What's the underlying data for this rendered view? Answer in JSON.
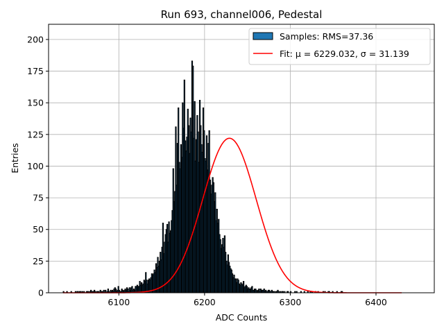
{
  "chart_data": {
    "type": "bar",
    "title": "Run 693, channel006, Pedestal",
    "xlabel": "ADC Counts",
    "ylabel": "Entries",
    "xlim": [
      6018,
      6468
    ],
    "ylim": [
      0,
      212
    ],
    "xticks": [
      6100,
      6200,
      6300,
      6400
    ],
    "yticks": [
      0,
      25,
      50,
      75,
      100,
      125,
      150,
      175,
      200
    ],
    "grid": true,
    "legend_placement": "top-right",
    "legend": [
      {
        "label": "Samples: RMS=37.36",
        "kind": "patch",
        "color": "#1f77b4"
      },
      {
        "label": "Fit: μ = 6229.032, σ = 31.139",
        "kind": "line",
        "color": "#ff0000"
      }
    ],
    "histogram": {
      "name": "Samples",
      "bin_start": 6035,
      "bin_width": 1,
      "face_color": "#1f77b4",
      "edge_color": "#000000",
      "counts": [
        1,
        0,
        0,
        0,
        1,
        0,
        0,
        0,
        0,
        1,
        0,
        0,
        0,
        0,
        1,
        0,
        1,
        1,
        0,
        1,
        1,
        0,
        1,
        0,
        1,
        0,
        0,
        1,
        1,
        1,
        0,
        1,
        2,
        1,
        1,
        1,
        2,
        1,
        0,
        1,
        1,
        1,
        0,
        2,
        1,
        1,
        1,
        2,
        0,
        2,
        0,
        1,
        3,
        1,
        0,
        2,
        1,
        2,
        1,
        3,
        4,
        3,
        1,
        2,
        5,
        2,
        1,
        1,
        3,
        2,
        1,
        2,
        3,
        2,
        4,
        3,
        1,
        4,
        2,
        4,
        5,
        2,
        3,
        2,
        5,
        5,
        6,
        5,
        5,
        9,
        6,
        8,
        6,
        7,
        10,
        9,
        16,
        10,
        7,
        10,
        11,
        10,
        12,
        15,
        14,
        15,
        18,
        16,
        23,
        20,
        28,
        21,
        25,
        32,
        26,
        36,
        55,
        31,
        40,
        46,
        50,
        54,
        40,
        56,
        47,
        49,
        57,
        65,
        98,
        72,
        80,
        131,
        85,
        118,
        146,
        103,
        98,
        117,
        107,
        150,
        130,
        168,
        120,
        112,
        123,
        145,
        132,
        110,
        138,
        127,
        183,
        179,
        122,
        151,
        104,
        121,
        140,
        127,
        103,
        152,
        132,
        117,
        111,
        146,
        128,
        106,
        104,
        124,
        97,
        118,
        128,
        89,
        78,
        85,
        91,
        87,
        72,
        79,
        57,
        66,
        55,
        58,
        46,
        42,
        35,
        38,
        43,
        36,
        45,
        32,
        25,
        22,
        30,
        24,
        21,
        19,
        18,
        15,
        12,
        14,
        11,
        11,
        8,
        11,
        10,
        7,
        6,
        8,
        7,
        6,
        9,
        4,
        5,
        6,
        5,
        3,
        4,
        3,
        3,
        4,
        5,
        2,
        2,
        3,
        3,
        2,
        1,
        2,
        3,
        1,
        3,
        2,
        2,
        2,
        3,
        1,
        2,
        1,
        1,
        2,
        2,
        1,
        1,
        2,
        1,
        1,
        1,
        0,
        1,
        1,
        2,
        1,
        0,
        1,
        0,
        1,
        1,
        0,
        1,
        0,
        0,
        1,
        1,
        0,
        0,
        1,
        0,
        0,
        0,
        0,
        1,
        0,
        1,
        0,
        0,
        0,
        0,
        1,
        0,
        0,
        0,
        1,
        0,
        0,
        0,
        1,
        0,
        0,
        1,
        0,
        1,
        0,
        0,
        0,
        1,
        0,
        0,
        1,
        0,
        0,
        0,
        0,
        0,
        1,
        0,
        1,
        0,
        0,
        0,
        1,
        1,
        0,
        0,
        0,
        1,
        0,
        0,
        0,
        0,
        1,
        0,
        0,
        0,
        0,
        1,
        1
      ]
    },
    "fit": {
      "name": "Fit",
      "color": "#ff0000",
      "mu": 6229.032,
      "sigma": 31.139,
      "amplitude": 122,
      "x_range": [
        6035,
        6430
      ]
    }
  }
}
